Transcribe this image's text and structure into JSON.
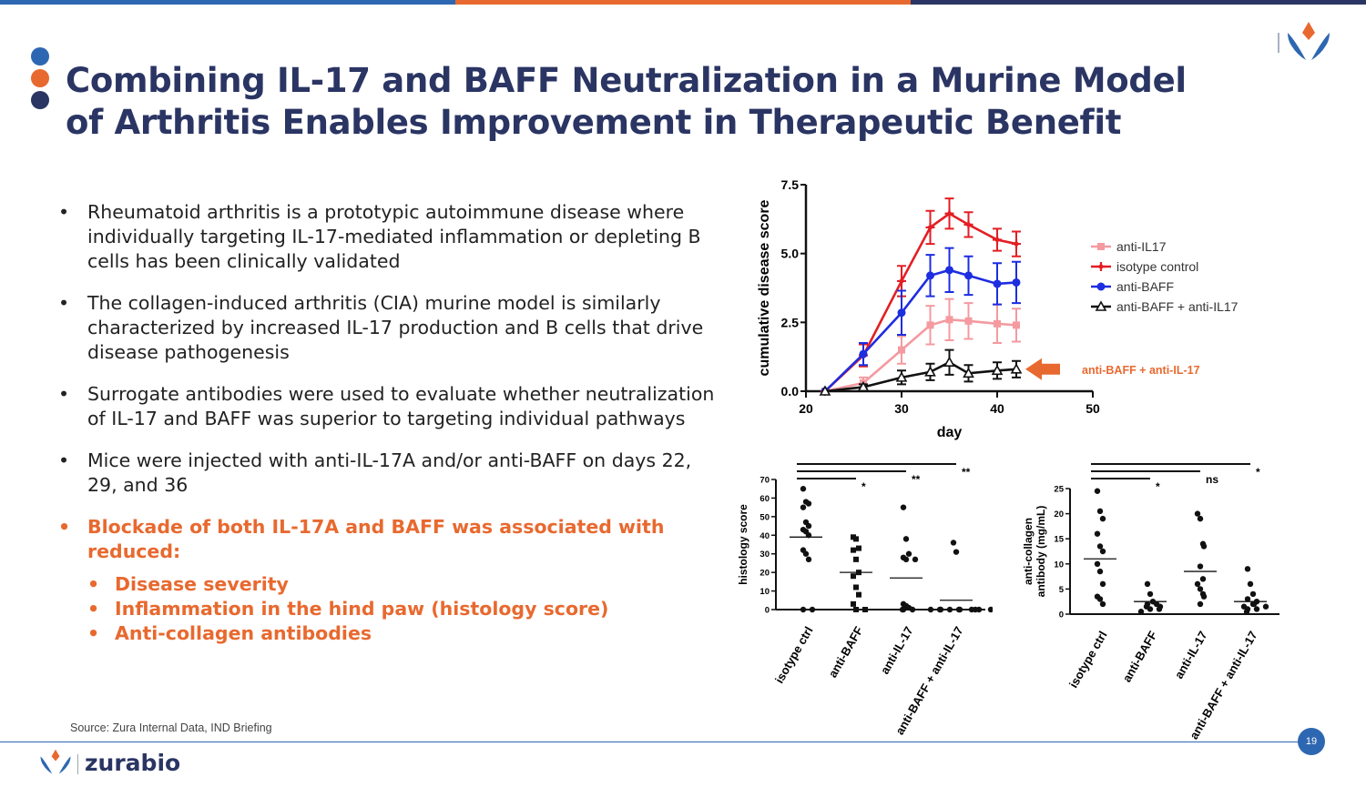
{
  "colors": {
    "navy": "#2a3563",
    "blue": "#2e67b1",
    "orange": "#e8692f"
  },
  "title": "Combining IL-17 and BAFF Neutralization in a Murine Model of Arthritis Enables Improvement in Therapeutic Benefit",
  "bullets": [
    {
      "text": "Rheumatoid arthritis is a prototypic autoimmune disease where individually targeting IL-17-mediated inflammation or depleting B cells has been clinically validated",
      "highlight": false
    },
    {
      "text": "The collagen-induced arthritis (CIA) murine model is similarly characterized by increased IL-17 production and B cells that drive disease pathogenesis",
      "highlight": false
    },
    {
      "text": "Surrogate antibodies were used to evaluate whether neutralization of IL-17 and BAFF was superior to targeting individual pathways",
      "highlight": false
    },
    {
      "text": "Mice were injected with anti-IL-17A and/or anti-BAFF on days 22, 29, and 36",
      "highlight": false
    },
    {
      "text": "Blockade of both IL-17A and BAFF was associated with reduced:",
      "highlight": true
    }
  ],
  "sub_bullets": [
    "Disease severity",
    "Inflammation in the hind paw (histology score)",
    "Anti-collagen antibodies"
  ],
  "bullet_marker": "•",
  "source": "Source: Zura Internal Data, IND Briefing",
  "page_number": "19",
  "brand": "zurabio",
  "chart_data": [
    {
      "type": "line",
      "xlabel": "day",
      "ylabel": "cumulative disease score",
      "xlim": [
        20,
        50
      ],
      "ylim": [
        0,
        7.5
      ],
      "xticks": [
        "20",
        "30",
        "40",
        "50"
      ],
      "yticks": [
        "0.0",
        "2.5",
        "5.0",
        "7.5"
      ],
      "x": [
        22,
        26,
        30,
        33,
        35,
        37,
        40,
        42
      ],
      "legend_position": "right",
      "series": [
        {
          "name": "anti-IL17",
          "color": "#f49aa0",
          "marker": "square",
          "values": [
            0,
            0.3,
            1.5,
            2.4,
            2.6,
            2.55,
            2.45,
            2.4
          ],
          "err": [
            0,
            0.2,
            0.5,
            0.7,
            0.75,
            0.65,
            0.7,
            0.6
          ]
        },
        {
          "name": "isotype control",
          "color": "#e31e24",
          "marker": "plus",
          "values": [
            0,
            1.3,
            4.0,
            5.95,
            6.45,
            6.05,
            5.5,
            5.35
          ],
          "err": [
            0,
            0.4,
            0.55,
            0.6,
            0.55,
            0.45,
            0.4,
            0.45
          ]
        },
        {
          "name": "anti-BAFF",
          "color": "#1d2de0",
          "marker": "circle",
          "values": [
            0,
            1.35,
            2.85,
            4.2,
            4.4,
            4.2,
            3.9,
            3.95
          ],
          "err": [
            0,
            0.4,
            0.8,
            0.75,
            0.8,
            0.7,
            0.75,
            0.75
          ]
        },
        {
          "name": "anti-BAFF + anti-IL17",
          "color": "#111111",
          "marker": "triangle",
          "values": [
            0,
            0.15,
            0.5,
            0.7,
            1.05,
            0.65,
            0.75,
            0.8
          ],
          "err": [
            0,
            0.1,
            0.25,
            0.3,
            0.45,
            0.3,
            0.3,
            0.3
          ]
        }
      ],
      "annotation": "anti-BAFF + anti-IL-17"
    },
    {
      "type": "scatter",
      "ylabel": "histology score",
      "ylim": [
        0,
        70
      ],
      "yticks": [
        "0",
        "10",
        "20",
        "30",
        "40",
        "50",
        "60",
        "70"
      ],
      "categories": [
        "isotype ctrl",
        "anti-BAFF",
        "anti-IL-17",
        "anti-BAFF + anti-IL-17"
      ],
      "points": [
        [
          65,
          58,
          57,
          55,
          47,
          45,
          43,
          42,
          40,
          32,
          30,
          27,
          0,
          0
        ],
        [
          39,
          38,
          33,
          32,
          27,
          20,
          18,
          12,
          8,
          3,
          0,
          0
        ],
        [
          55,
          38,
          30,
          28,
          27,
          27,
          3,
          2,
          1,
          0,
          0,
          0
        ],
        [
          36,
          31,
          0,
          0,
          0,
          0,
          0,
          0,
          0,
          0,
          0,
          0
        ]
      ],
      "means": [
        39,
        20,
        17,
        5
      ],
      "significance": [
        {
          "from": 0,
          "to": 1,
          "label": "*"
        },
        {
          "from": 0,
          "to": 2,
          "label": "**"
        },
        {
          "from": 0,
          "to": 3,
          "label": "**"
        }
      ]
    },
    {
      "type": "scatter",
      "ylabel": "anti-collagen antibody (mg/mL)",
      "ylim": [
        0,
        25
      ],
      "yticks": [
        "0",
        "5",
        "10",
        "15",
        "20",
        "25"
      ],
      "categories": [
        "isotype ctrl",
        "anti-BAFF",
        "anti-IL-17",
        "anti-BAFF + anti-IL-17"
      ],
      "points": [
        [
          24.5,
          20.5,
          19,
          16,
          13.5,
          12.5,
          10,
          8.5,
          6,
          3.5,
          3,
          2
        ],
        [
          6,
          4,
          2.5,
          2,
          2,
          1.5,
          1.5,
          1,
          1,
          0.5
        ],
        [
          20,
          19,
          14,
          13.5,
          9.5,
          7,
          6,
          5,
          4,
          3.5,
          2
        ],
        [
          9,
          6,
          4,
          3,
          2.5,
          2,
          2,
          1.5,
          1.5,
          1,
          1,
          0.5
        ]
      ],
      "means": [
        11,
        2.5,
        8.5,
        2.5
      ],
      "significance": [
        {
          "from": 0,
          "to": 1,
          "label": "*"
        },
        {
          "from": 0,
          "to": 2,
          "label": "ns"
        },
        {
          "from": 0,
          "to": 3,
          "label": "*"
        }
      ]
    }
  ]
}
